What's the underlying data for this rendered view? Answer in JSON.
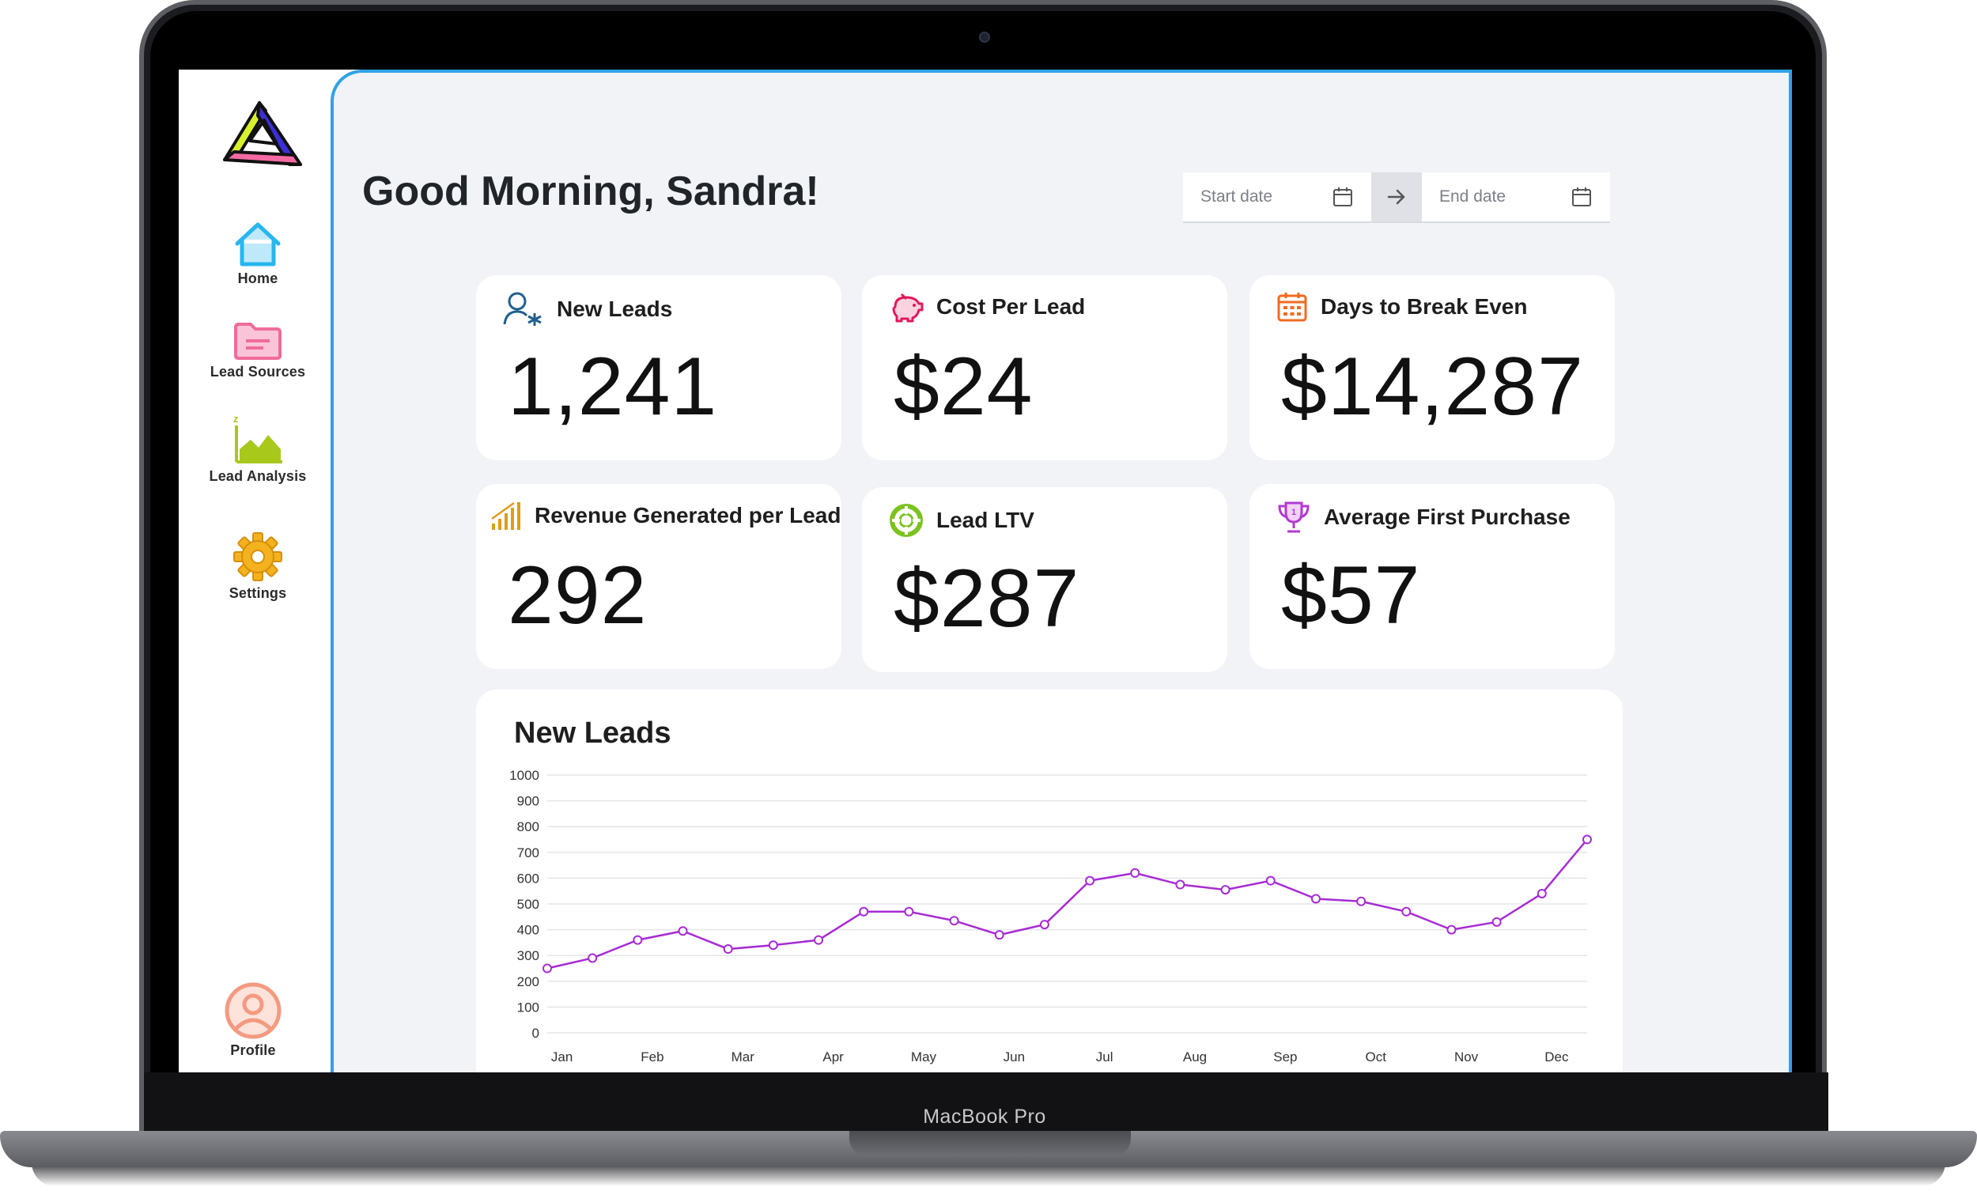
{
  "device": {
    "label": "MacBook Pro"
  },
  "sidebar": {
    "items": [
      {
        "label": "Home",
        "icon": "home-icon",
        "color": "#27b6f0"
      },
      {
        "label": "Lead Sources",
        "icon": "folder-icon",
        "color": "#f06b9a"
      },
      {
        "label": "Lead Analysis",
        "icon": "area-chart-icon",
        "color": "#a8c81c"
      },
      {
        "label": "Settings",
        "icon": "gear-icon",
        "color": "#f3b21e"
      }
    ],
    "profile": {
      "label": "Profile",
      "icon": "profile-icon",
      "color": "#f39a80"
    }
  },
  "header": {
    "greeting": "Good Morning, Sandra!",
    "date_range": {
      "start_placeholder": "Start date",
      "end_placeholder": "End date"
    }
  },
  "stats": [
    {
      "title": "New Leads",
      "value": "1,241",
      "icon": "user-add-icon",
      "color": "#1f5f8f"
    },
    {
      "title": "Cost Per Lead",
      "value": "$24",
      "icon": "piggy-bank-icon",
      "color": "#e0185c"
    },
    {
      "title": "Days to Break Even",
      "value": "$14,287",
      "icon": "calendar-icon",
      "color": "#f26b21"
    },
    {
      "title": "Revenue Generated per Lead",
      "value": "292",
      "icon": "signal-bars-icon",
      "color": "#e09b1a"
    },
    {
      "title": "Lead LTV",
      "value": "$287",
      "icon": "lifebuoy-icon",
      "color": "#7cc21f"
    },
    {
      "title": "Average First Purchase",
      "value": "$57",
      "icon": "trophy-icon",
      "color": "#b23ad1"
    }
  ],
  "chart_data": {
    "type": "line",
    "title": "New Leads",
    "x": [
      "Jan",
      "",
      "Feb",
      "",
      "Mar",
      "",
      "Apr",
      "",
      "May",
      "",
      "Jun",
      "",
      "Jul",
      "",
      "Aug",
      "",
      "Sep",
      "",
      "Oct",
      "",
      "Nov",
      "",
      "Dec",
      ""
    ],
    "x_tick_labels": [
      "Jan",
      "Feb",
      "Mar",
      "Apr",
      "May",
      "Jun",
      "Jul",
      "Aug",
      "Sep",
      "Oct",
      "Nov",
      "Dec"
    ],
    "series": [
      {
        "values": [
          250,
          290,
          360,
          395,
          325,
          340,
          360,
          470,
          470,
          435,
          380,
          420,
          590,
          620,
          575,
          555,
          590,
          520,
          510,
          470,
          400,
          430,
          540,
          750
        ],
        "color": "#a72bd4"
      }
    ],
    "ylim": [
      0,
      1000
    ],
    "y_ticks": [
      0,
      100,
      200,
      300,
      400,
      500,
      600,
      700,
      800,
      900,
      1000
    ],
    "grid": true
  }
}
